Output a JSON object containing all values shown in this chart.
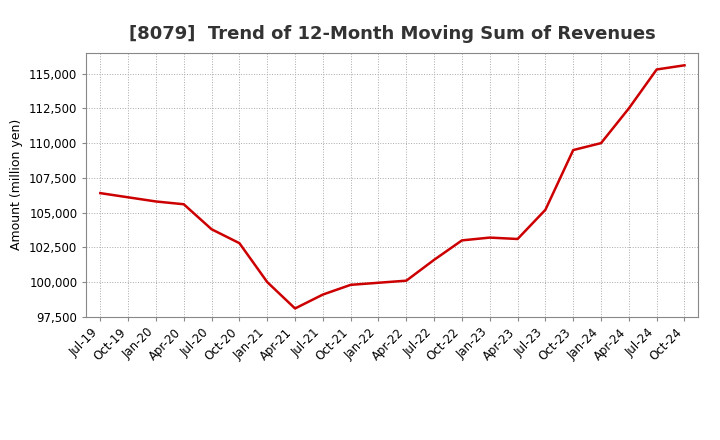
{
  "title": "[8079]  Trend of 12-Month Moving Sum of Revenues",
  "ylabel": "Amount (million yen)",
  "background_color": "#ffffff",
  "grid_color": "#aaaaaa",
  "line_color": "#cc0000",
  "ylim": [
    97500,
    116500
  ],
  "yticks": [
    97500,
    100000,
    102500,
    105000,
    107500,
    110000,
    112500,
    115000
  ],
  "x_labels": [
    "Jul-19",
    "Oct-19",
    "Jan-20",
    "Apr-20",
    "Jul-20",
    "Oct-20",
    "Jan-21",
    "Apr-21",
    "Jul-21",
    "Oct-21",
    "Jan-22",
    "Apr-22",
    "Jul-22",
    "Oct-22",
    "Jan-23",
    "Apr-23",
    "Jul-23",
    "Oct-23",
    "Jan-24",
    "Apr-24",
    "Jul-24",
    "Oct-24"
  ],
  "values": [
    106400,
    106100,
    105800,
    105600,
    103800,
    102800,
    100000,
    98100,
    99100,
    99800,
    99950,
    100100,
    101600,
    103000,
    103200,
    103100,
    105200,
    109500,
    110000,
    112500,
    115300,
    115600
  ],
  "title_fontsize": 13,
  "title_color": "#333333",
  "axis_label_fontsize": 9,
  "tick_fontsize": 8.5,
  "line_width": 1.8
}
